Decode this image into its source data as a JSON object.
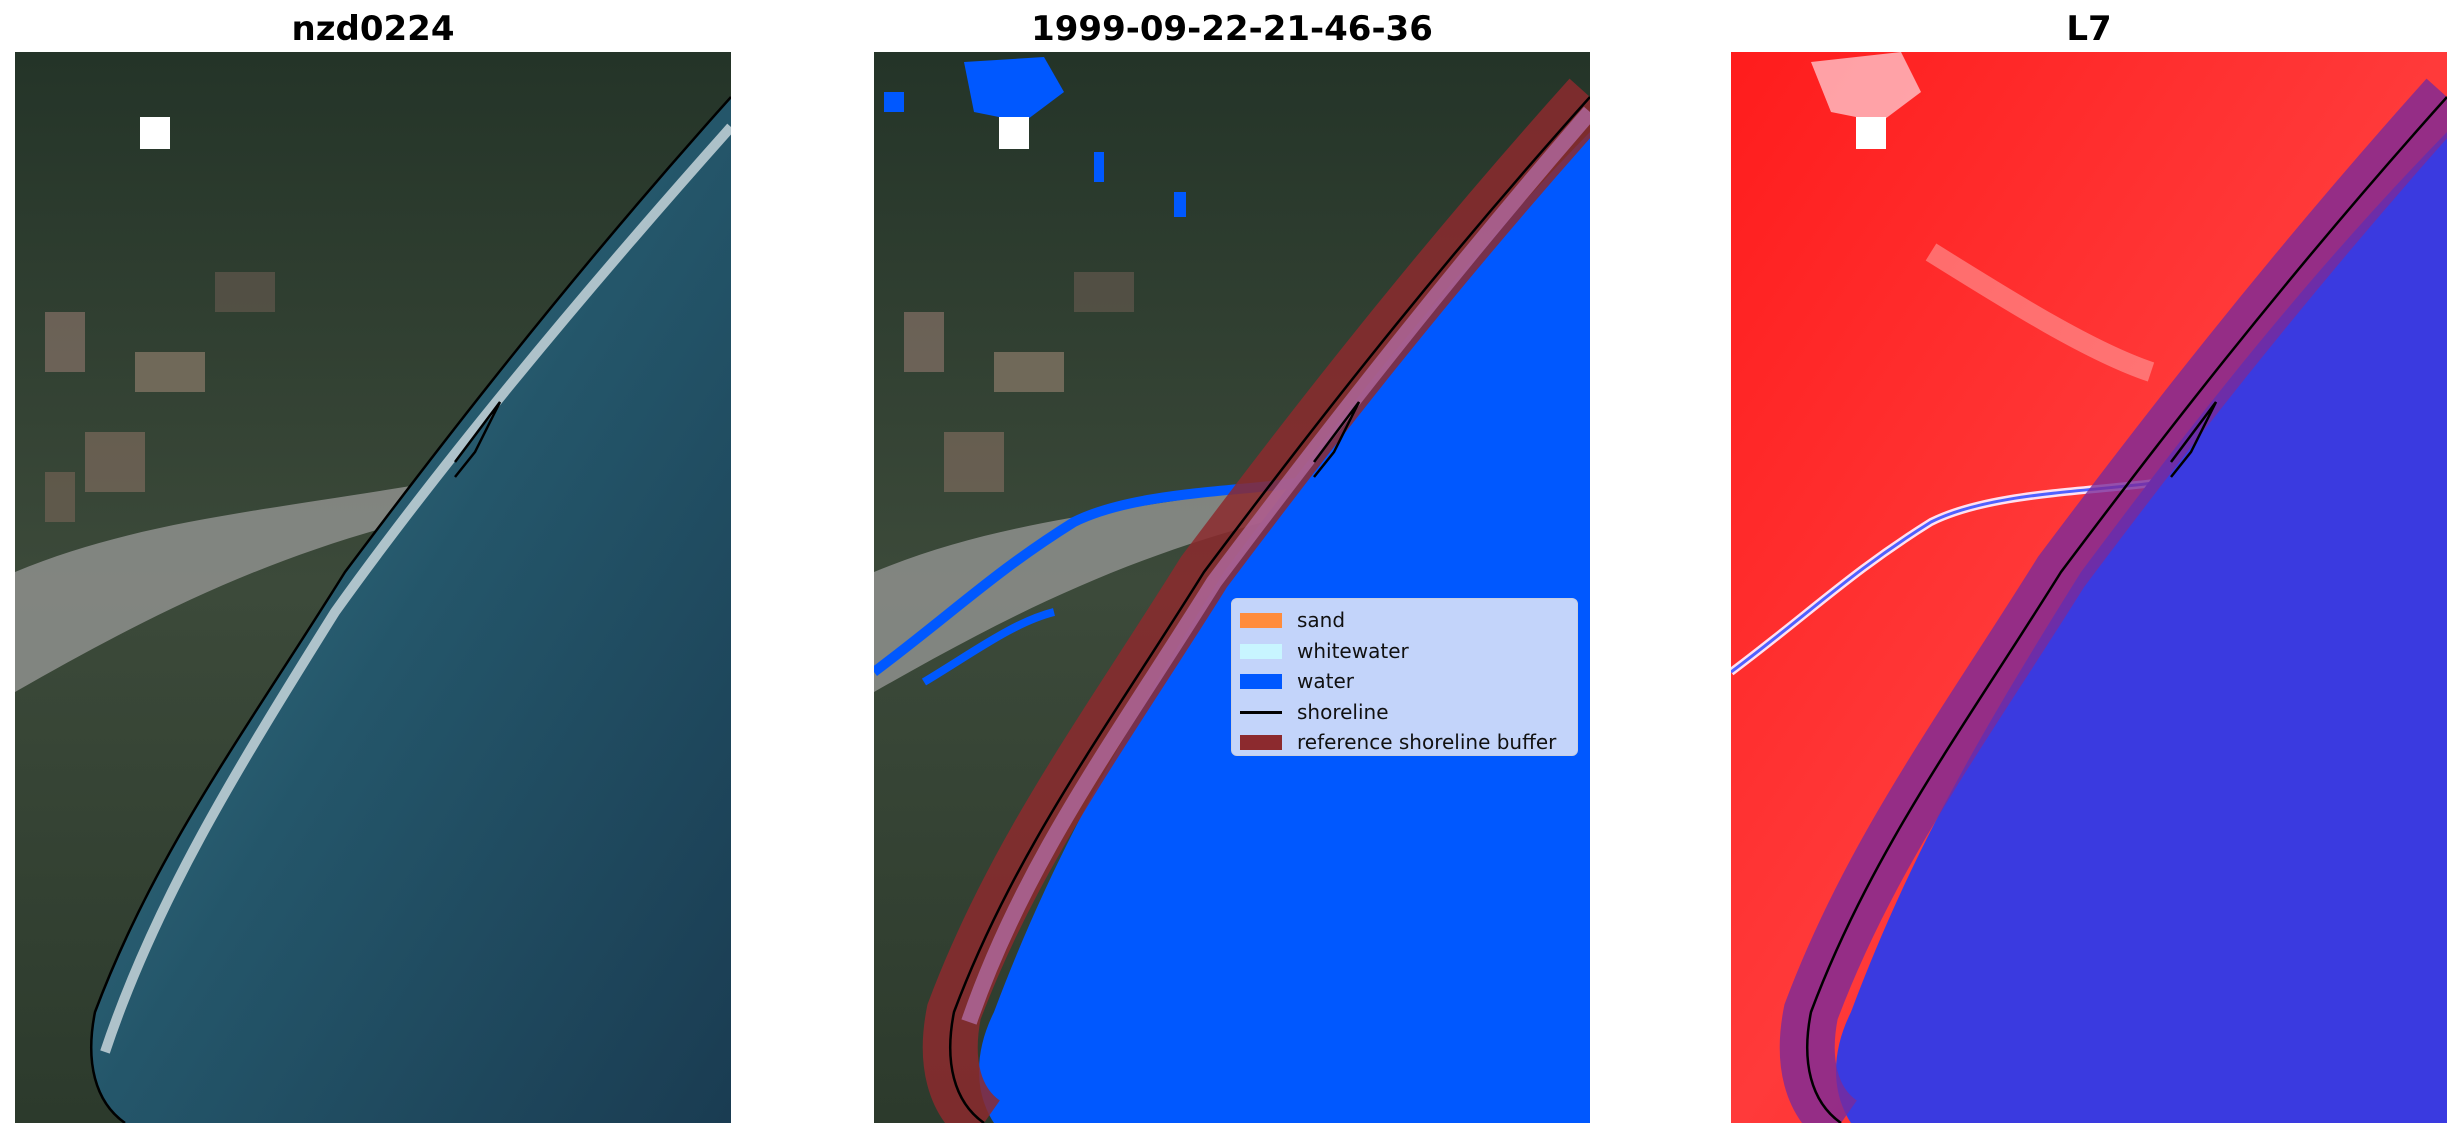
{
  "panels": [
    {
      "title": "nzd0224"
    },
    {
      "title": "1999-09-22-21-46-36"
    },
    {
      "title": "L7"
    }
  ],
  "legend": {
    "items": [
      {
        "label": "sand",
        "color": "#ff8c3c",
        "kind": "patch"
      },
      {
        "label": "whitewater",
        "color": "#c8f5ff",
        "kind": "patch"
      },
      {
        "label": "water",
        "color": "#0058ff",
        "kind": "patch"
      },
      {
        "label": "shoreline",
        "color": "#000000",
        "kind": "line"
      },
      {
        "label": "reference shoreline buffer",
        "color": "#8c2a2e",
        "kind": "patch"
      }
    ]
  },
  "colors": {
    "land_dark": "#2c3a30",
    "ocean": "#1e4c60",
    "classified_water": "#0058ff",
    "buffer": "#8c2a2e",
    "infrared_land": "#ff2a2a",
    "infrared_water": "#3a3ae0"
  }
}
